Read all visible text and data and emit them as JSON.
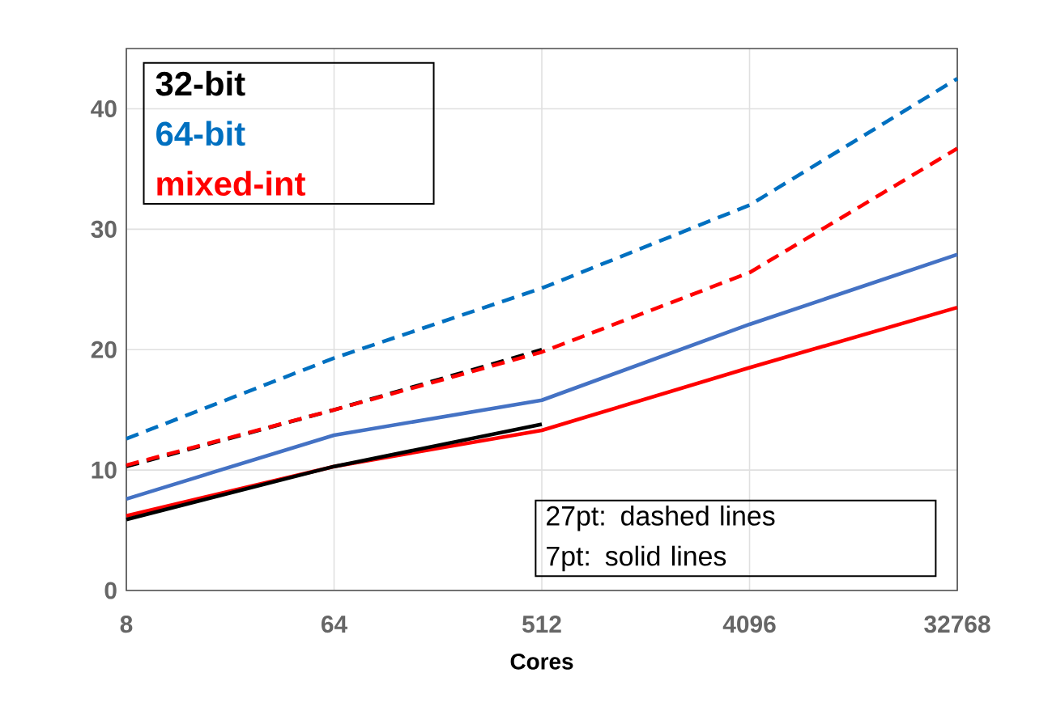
{
  "chart_data": {
    "type": "line",
    "xlabel": "Cores",
    "categories": [
      "8",
      "64",
      "512",
      "4096",
      "32768"
    ],
    "series": [
      {
        "name": "32-bit",
        "color": "#000000",
        "line_style": "dashed",
        "values": [
          10.3,
          15.0,
          20.0,
          null,
          null
        ]
      },
      {
        "name": "64-bit",
        "color": "#0070c0",
        "line_style": "dashed",
        "values": [
          12.6,
          19.3,
          25.1,
          32.0,
          42.5
        ]
      },
      {
        "name": "mixed-int",
        "color": "#ff0000",
        "line_style": "dashed",
        "values": [
          10.4,
          15.0,
          19.8,
          26.4,
          36.7
        ]
      },
      {
        "color": "#4472c4",
        "line_style": "solid",
        "values": [
          7.6,
          12.9,
          15.8,
          22.1,
          27.9
        ]
      },
      {
        "color": "#ff0000",
        "line_style": "solid",
        "values": [
          6.2,
          10.3,
          13.3,
          18.5,
          23.5
        ]
      },
      {
        "color": "#000000",
        "line_style": "solid",
        "values": [
          5.9,
          10.3,
          13.8,
          null,
          null
        ]
      }
    ],
    "ylim": [
      0,
      45
    ],
    "yticks": [
      0,
      10,
      20,
      30,
      40
    ],
    "grid": true,
    "legend": "top left",
    "annotations": [
      "27pt:  dashed lines",
      "7pt:    solid lines"
    ]
  }
}
